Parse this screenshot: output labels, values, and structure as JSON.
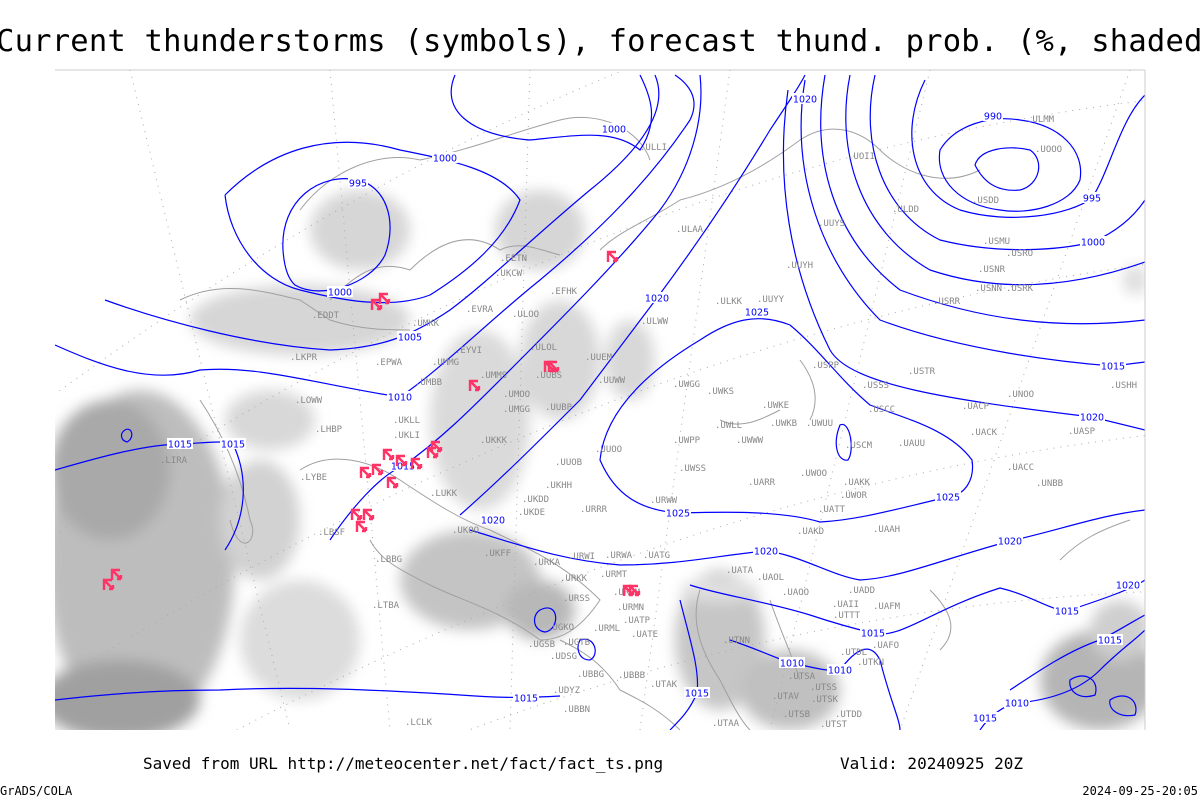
{
  "title": "Current thunderstorms (symbols), forecast thund. prob. (%, shaded)",
  "footer": {
    "saved": "Saved from URL http://meteocenter.net/fact/fact_ts.png",
    "valid": "Valid: 20240925 20Z",
    "software": "GrADS/COLA",
    "timestamp": "2024-09-25-20:05"
  },
  "colors": {
    "isobar": "#0000ff",
    "thunderstorm_symbol": "#ff3366",
    "coastline": "#a0a0a0",
    "probability_shading": "#d0d0d0",
    "station_label": "#888888"
  },
  "legend_semantics": {
    "symbols": "thunderstorm-symbol",
    "shading": "forecast thunderstorm probability (%)",
    "contours": "sea-level pressure isobars (hPa)"
  },
  "isobar_labels": [
    "995",
    "1000",
    "1000",
    "1000",
    "1005",
    "1010",
    "1015",
    "1015",
    "1015",
    "1020",
    "1025",
    "1020",
    "1020",
    "1020",
    "1020",
    "1025",
    "1025",
    "990",
    "995",
    "1000",
    "1015",
    "1020",
    "1015",
    "1015",
    "1010",
    "1010",
    "1015",
    "1015",
    "1010",
    "1015",
    "1020",
    "1015"
  ],
  "stations": [
    "LIRA",
    "LKPR",
    "EDDT",
    "EPWA",
    "LOWW",
    "LHBP",
    "LYBE",
    "LBSF",
    "LBBG",
    "LTBA",
    "LCLK",
    "UMKK",
    "EVRA",
    "ULOO",
    "EYVI",
    "UMMG",
    "UMBB",
    "UMMS",
    "UMOO",
    "ULOL",
    "UUBS",
    "UUEM",
    "UUWW",
    "UMGG",
    "UUBP",
    "UKLL",
    "UKLI",
    "UKKK",
    "UUOB",
    "LUKK",
    "UKHH",
    "UKDD",
    "UKDE",
    "UKOO",
    "UKFF",
    "URKA",
    "URKK",
    "URMT",
    "URMM",
    "URMN",
    "URSS",
    "UGKO",
    "UGSB",
    "UGTB",
    "UDSG",
    "UBBG",
    "UDYZ",
    "UBBN",
    "UBBB",
    "UATG",
    "URWA",
    "URWI",
    "UATP",
    "UATE",
    "URML",
    "UTAK",
    "UTAA",
    "UTAV",
    "UTSA",
    "UTSS",
    "UTSB",
    "UTSK",
    "UTST",
    "UTDD",
    "UTDL",
    "UTTT",
    "UTKN",
    "UAFO",
    "UAII",
    "UADD",
    "UAFM",
    "UAOO",
    "UAOL",
    "UATA",
    "UTNN",
    "UAKD",
    "UAAH",
    "UAKK",
    "ULAA",
    "UUYS",
    "UUYH",
    "ULKK",
    "UUYY",
    "ULWW",
    "UWGG",
    "UWKS",
    "UWKE",
    "UWLL",
    "UWKB",
    "UWUU",
    "UWPP",
    "UWWW",
    "UUOO",
    "UWSS",
    "URWW",
    "UWOO",
    "UARR",
    "UWOR",
    "UATT",
    "USCM",
    "USCC",
    "USSS",
    "USPP",
    "USTR",
    "UAUU",
    "UACK",
    "UACP",
    "UNOO",
    "UASP",
    "UACC",
    "UNBB",
    "USHH",
    "USRR",
    "USNN",
    "USRK",
    "USNR",
    "USRO",
    "USMU",
    "USDD",
    "ULDD",
    "UOII",
    "UOOO",
    "ULMM",
    "ULLI",
    "EFHK",
    "EETN",
    "UKCW",
    "URRR"
  ]
}
